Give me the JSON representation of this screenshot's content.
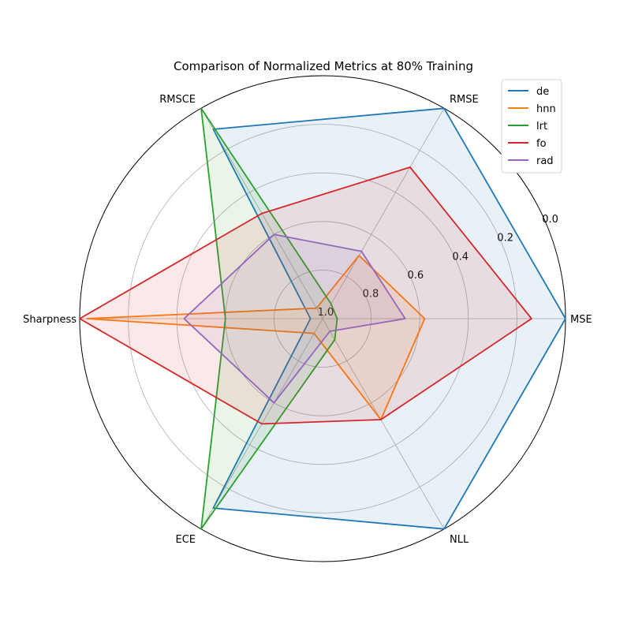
{
  "chart_data": {
    "type": "radar",
    "title": "Comparison of Normalized Metrics at 80% Training",
    "axes": [
      "MSE",
      "RMSE",
      "RMSCE",
      "Sharpness",
      "ECE",
      "NLL"
    ],
    "radial_ticks": [
      "0.0",
      "0.2",
      "0.4",
      "0.6",
      "0.8",
      "1.0"
    ],
    "radial_tick_values": [
      0.0,
      0.2,
      0.4,
      0.6,
      0.8,
      1.0
    ],
    "radial_range": [
      1.0,
      0.0
    ],
    "radial_inverted": true,
    "grid": true,
    "legend_position": "top-right",
    "fill_opacity": 0.1,
    "series": [
      {
        "name": "de",
        "color": "#1f77b4",
        "values": [
          0.0,
          0.0,
          0.1,
          0.95,
          0.1,
          0.0
        ]
      },
      {
        "name": "hnn",
        "color": "#ff7f0e",
        "values": [
          0.58,
          0.7,
          0.95,
          0.03,
          0.93,
          0.52
        ]
      },
      {
        "name": "lrt",
        "color": "#2ca02c",
        "values": [
          0.94,
          0.93,
          0.0,
          0.6,
          0.0,
          0.9
        ]
      },
      {
        "name": "fo",
        "color": "#d62728",
        "values": [
          0.14,
          0.28,
          0.5,
          0.0,
          0.5,
          0.52
        ]
      },
      {
        "name": "rad",
        "color": "#9467bd",
        "values": [
          0.66,
          0.68,
          0.6,
          0.43,
          0.6,
          0.94
        ]
      }
    ]
  }
}
